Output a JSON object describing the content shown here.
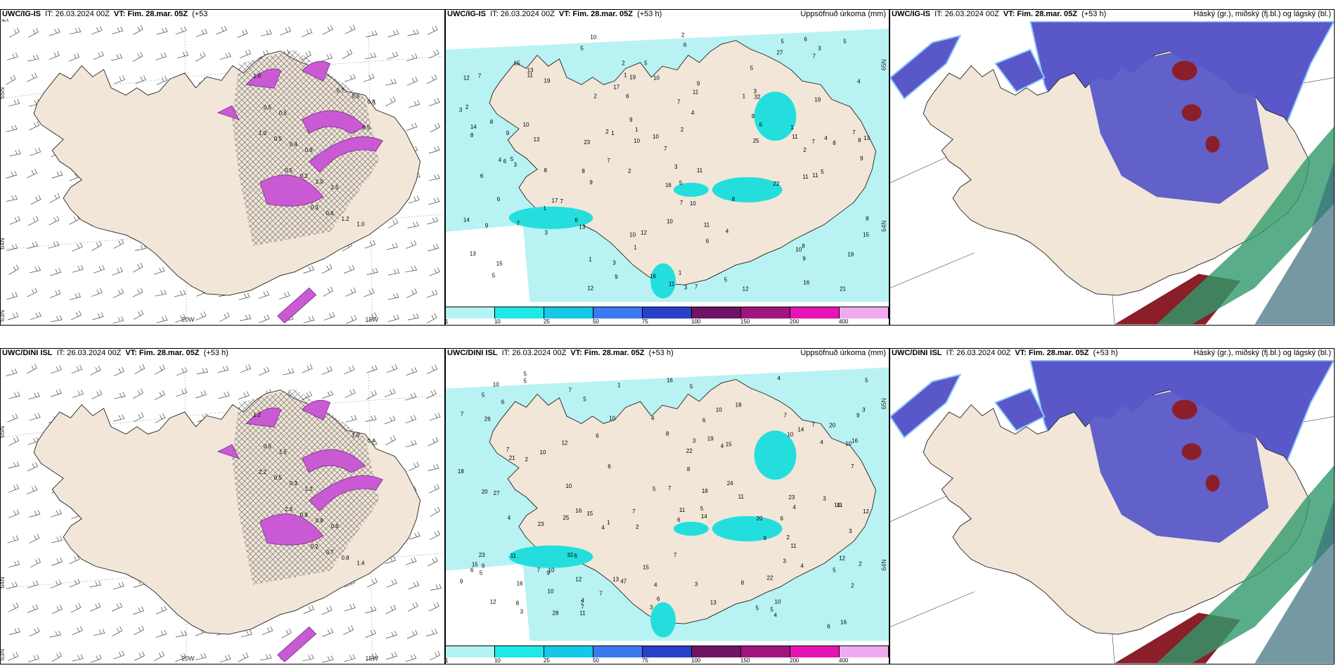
{
  "rows": [
    {
      "id": "top",
      "panels": [
        {
          "kind": "wind",
          "title_model": "UWC/IG-IS",
          "title_it": "IT: 26.03.2024 00Z",
          "title_vt": "VT: Fim. 28.mar. 05Z",
          "title_lead": "(+53",
          "title_lead_wrap": "h)",
          "title_right": "",
          "lat_labels": [
            "65N",
            "64N",
            "63N"
          ],
          "lon_labels": [
            "20W",
            "15W"
          ],
          "contour_values": [
            "1.0",
            "0.5",
            "0.9",
            "1.5",
            "1.0",
            "0.5",
            "0.4",
            "1.0",
            "1.2",
            "0.8",
            "0.5",
            "0.2",
            "0.6",
            "0.5",
            "1.0",
            "0.5",
            "0.3",
            "0.7",
            "0.5"
          ]
        },
        {
          "kind": "precip",
          "title_model": "UWC/IG-IS",
          "title_it": "IT: 26.03.2024 00Z",
          "title_vt": "VT: Fim. 28.mar. 05Z",
          "title_lead": "(+53 h)",
          "title_right": "Uppsöfnuð úrkoma (mm)",
          "lat_labels": [
            "65N",
            "64N"
          ],
          "values": [
            "10",
            "5",
            "8",
            "2",
            "5",
            "5",
            "7",
            "1",
            "6",
            "11",
            "7",
            "5",
            "5",
            "8",
            "3",
            "7",
            "1",
            "5",
            "6",
            "1",
            "9",
            "4",
            "13",
            "4",
            "14",
            "8",
            "10",
            "11",
            "8",
            "9",
            "10",
            "9",
            "7",
            "1",
            "4",
            "8",
            "1",
            "3",
            "5",
            "5",
            "15",
            "12",
            "5",
            "15",
            "16",
            "32",
            "9",
            "3",
            "3",
            "3",
            "1",
            "2",
            "2",
            "7",
            "6",
            "3",
            "9",
            "10",
            "3",
            "6",
            "19",
            "11",
            "13",
            "13",
            "16",
            "14",
            "7",
            "3",
            "2",
            "4",
            "6",
            "2",
            "7",
            "9",
            "4",
            "10",
            "1",
            "11",
            "8",
            "7",
            "2",
            "1",
            "16",
            "12",
            "17",
            "19",
            "21",
            "22",
            "9",
            "6",
            "8",
            "5",
            "9",
            "11",
            "1",
            "11",
            "7",
            "23",
            "11",
            "12",
            "6",
            "8",
            "10",
            "7",
            "13",
            "17",
            "19",
            "10",
            "27",
            "25",
            "19",
            "7",
            "8",
            "12",
            "11",
            "13",
            "6",
            "2",
            "10",
            "15",
            "10",
            "9",
            "6",
            "2"
          ]
        },
        {
          "kind": "cloud",
          "title_model": "UWC/IG-IS",
          "title_it": "IT: 26.03.2024 00Z",
          "title_vt": "VT: Fim. 28.mar. 05Z",
          "title_lead": "(+53 h)",
          "title_right": "Háský (gr.), miðský (fj.bl.) og lágský (bl.)"
        }
      ]
    },
    {
      "id": "bottom",
      "panels": [
        {
          "kind": "wind",
          "title_model": "UWC/DINI ISL",
          "title_it": "IT: 26.03.2024 00Z",
          "title_vt": "VT: Fim. 28.mar. 05Z",
          "title_lead": "(+53 h)",
          "title_lead_wrap": "",
          "title_right": "",
          "lat_labels": [
            "65N",
            "64N",
            "63N"
          ],
          "lon_labels": [
            "20W",
            "15W"
          ],
          "contour_values": [
            "1.2",
            "1.5",
            "1.2",
            "0.6",
            "1.4",
            "0.5",
            "0.3",
            "0.8",
            "0.8",
            "0.4",
            "0.5",
            "0.9",
            "0.7",
            "1.0",
            "2.2",
            "2.3",
            "0.2"
          ]
        },
        {
          "kind": "precip",
          "title_model": "UWC/DINI ISL",
          "title_it": "IT: 26.03.2024 00Z",
          "title_vt": "VT: Fim. 28.mar. 05Z",
          "title_lead": "(+53 h)",
          "title_right": "Uppsöfnuð úrkoma (mm)",
          "lat_labels": [
            "65N",
            "64N"
          ],
          "values": [
            "12",
            "14",
            "3",
            "3",
            "10",
            "9",
            "16",
            "5",
            "4",
            "4",
            "5",
            "5",
            "3",
            "6",
            "4",
            "1",
            "2",
            "6",
            "14",
            "11",
            "27",
            "5",
            "7",
            "7",
            "8",
            "25",
            "8",
            "10",
            "7",
            "6",
            "7",
            "5",
            "10",
            "16",
            "32",
            "47",
            "10",
            "11",
            "6",
            "13",
            "15",
            "23",
            "10",
            "7",
            "10",
            "28",
            "6",
            "18",
            "16",
            "24",
            "23",
            "5",
            "15",
            "12",
            "13",
            "9",
            "10",
            "4",
            "4",
            "4",
            "3",
            "2",
            "5",
            "5",
            "6",
            "3",
            "2",
            "4",
            "5",
            "9",
            "5",
            "7",
            "4",
            "11",
            "16",
            "7",
            "4",
            "22",
            "3",
            "26",
            "18",
            "12",
            "10",
            "2",
            "1",
            "4",
            "2",
            "10",
            "3",
            "12",
            "7",
            "20",
            "15",
            "9",
            "7",
            "5",
            "6",
            "18",
            "16",
            "10",
            "21",
            "6",
            "7",
            "11",
            "8",
            "7",
            "7",
            "7",
            "8",
            "6",
            "3",
            "23",
            "22",
            "20",
            "4",
            "19",
            "15",
            "10",
            "9",
            "20",
            "11",
            "12",
            "11",
            "5",
            "6"
          ]
        },
        {
          "kind": "cloud",
          "title_model": "UWC/DINI ISL",
          "title_it": "IT: 26.03.2024 00Z",
          "title_vt": "VT: Fim. 28.mar. 05Z",
          "title_lead": "(+53 h)",
          "title_right": "Háský (gr.), miðský (fj.bl.) og lágský (bl.)"
        }
      ]
    }
  ],
  "colorbar": {
    "ticks": [
      "1",
      "10",
      "25",
      "50",
      "75",
      "100",
      "150",
      "200",
      "400"
    ],
    "colors": [
      "#b3f3f3",
      "#1ee8e8",
      "#14c8e6",
      "#3c78f0",
      "#2840c8",
      "#6e1464",
      "#a0147e",
      "#e614b4",
      "#f0aaf0"
    ]
  },
  "palette": {
    "land": "#f1e6d8",
    "precip_light": "#b9f2f2",
    "precip_mid": "#24dede",
    "precip_hi": "#18c8e0",
    "wind_pink": "#c95ad4",
    "cloud_high": "#5a58c8",
    "cloud_mid": "#2f9a6c",
    "cloud_low": "#8a1f2a"
  }
}
